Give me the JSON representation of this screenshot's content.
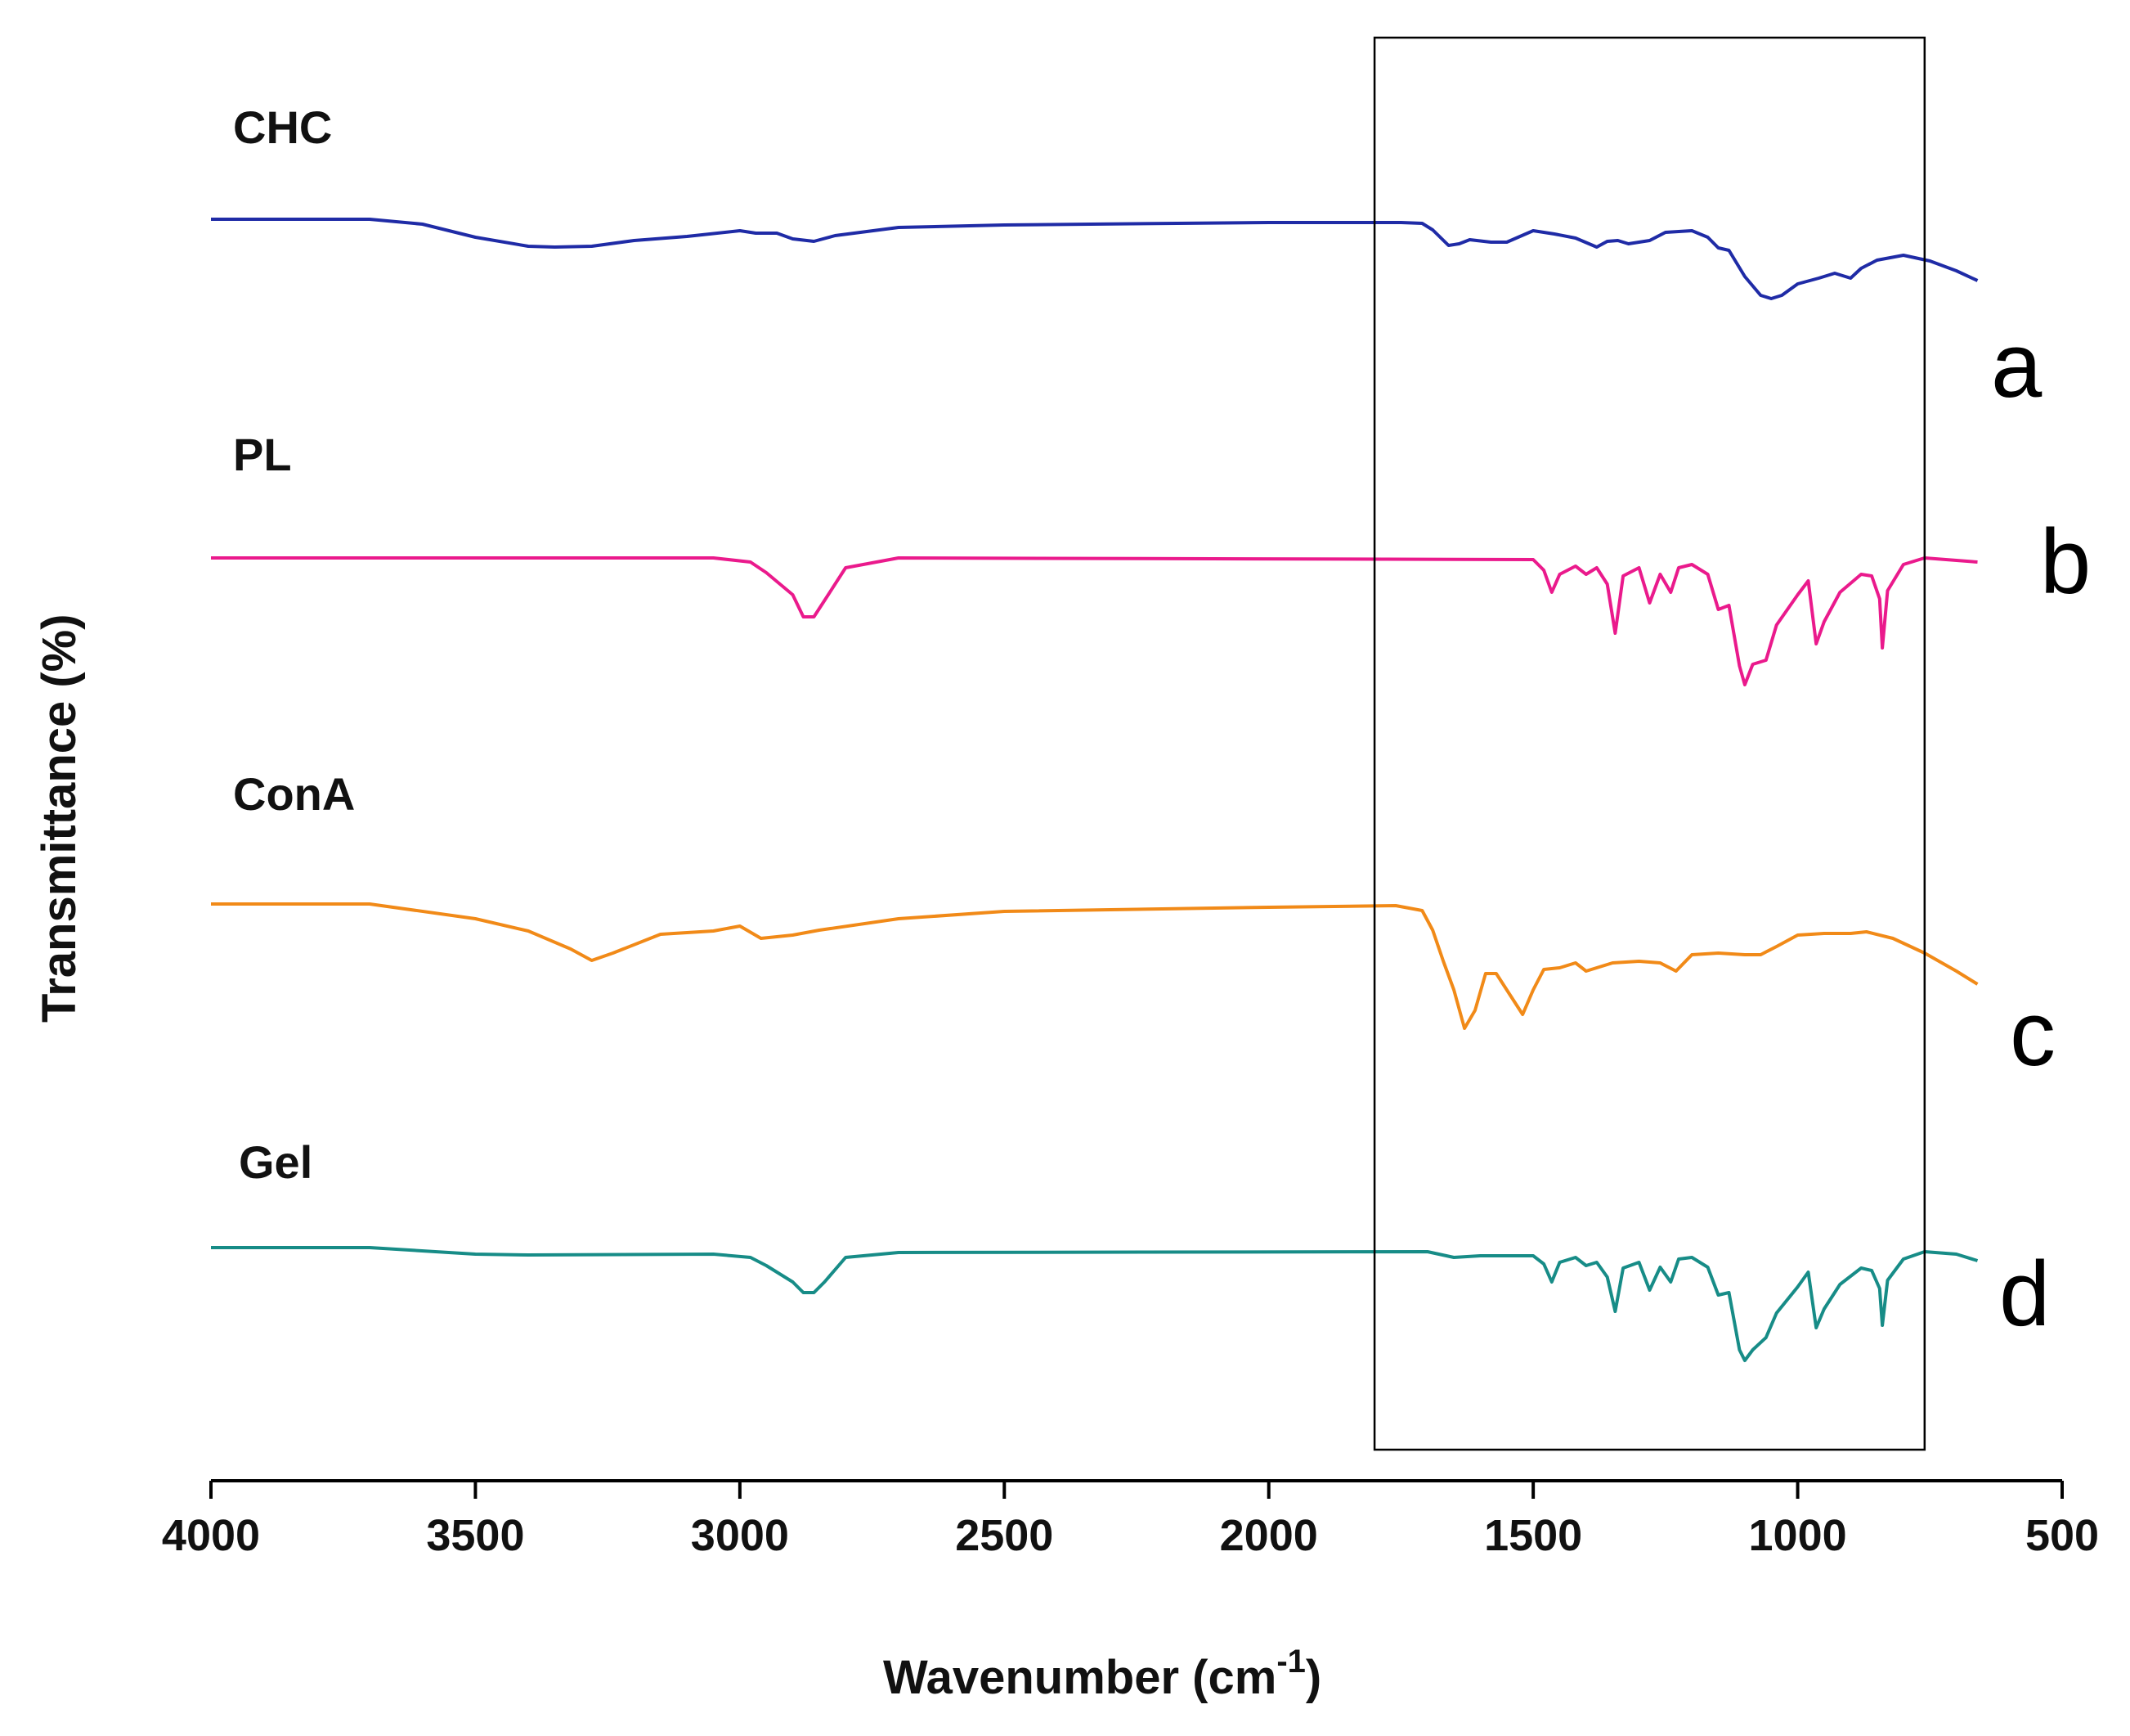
{
  "chart_data": {
    "type": "line",
    "xlabel_main": "Wavenumber (cm",
    "xlabel_sup": "-1",
    "xlabel_close": ")",
    "ylabel": "Transmittance (%)",
    "xlim": [
      4000,
      500
    ],
    "x_ticks": [
      4000,
      3500,
      3000,
      2500,
      2000,
      1500,
      1000,
      500
    ],
    "highlight_box": {
      "x_range": [
        1800,
        760
      ]
    },
    "series": [
      {
        "name": "CHC",
        "letter": "a",
        "color": "#1f2ba6",
        "points": [
          [
            4000,
            0
          ],
          [
            3700,
            0
          ],
          [
            3600,
            -0.06
          ],
          [
            3500,
            -0.22
          ],
          [
            3400,
            -0.33
          ],
          [
            3350,
            -0.34
          ],
          [
            3280,
            -0.33
          ],
          [
            3200,
            -0.26
          ],
          [
            3100,
            -0.21
          ],
          [
            3000,
            -0.14
          ],
          [
            2970,
            -0.17
          ],
          [
            2930,
            -0.17
          ],
          [
            2900,
            -0.24
          ],
          [
            2860,
            -0.27
          ],
          [
            2820,
            -0.2
          ],
          [
            2700,
            -0.1
          ],
          [
            2500,
            -0.07
          ],
          [
            2000,
            -0.04
          ],
          [
            1750,
            -0.04
          ],
          [
            1710,
            -0.05
          ],
          [
            1690,
            -0.13
          ],
          [
            1660,
            -0.32
          ],
          [
            1640,
            -0.3
          ],
          [
            1620,
            -0.25
          ],
          [
            1580,
            -0.28
          ],
          [
            1550,
            -0.28
          ],
          [
            1500,
            -0.14
          ],
          [
            1460,
            -0.18
          ],
          [
            1420,
            -0.23
          ],
          [
            1380,
            -0.34
          ],
          [
            1360,
            -0.27
          ],
          [
            1340,
            -0.26
          ],
          [
            1320,
            -0.3
          ],
          [
            1280,
            -0.26
          ],
          [
            1250,
            -0.16
          ],
          [
            1200,
            -0.14
          ],
          [
            1170,
            -0.22
          ],
          [
            1150,
            -0.35
          ],
          [
            1130,
            -0.38
          ],
          [
            1100,
            -0.7
          ],
          [
            1070,
            -0.93
          ],
          [
            1050,
            -0.97
          ],
          [
            1030,
            -0.93
          ],
          [
            1000,
            -0.79
          ],
          [
            960,
            -0.72
          ],
          [
            930,
            -0.66
          ],
          [
            900,
            -0.72
          ],
          [
            880,
            -0.6
          ],
          [
            850,
            -0.5
          ],
          [
            800,
            -0.44
          ],
          [
            750,
            -0.51
          ],
          [
            700,
            -0.63
          ],
          [
            660,
            -0.75
          ]
        ]
      },
      {
        "name": "PL",
        "letter": "b",
        "color": "#ea1a8c",
        "points": [
          [
            4000,
            0
          ],
          [
            3050,
            0
          ],
          [
            2980,
            -0.05
          ],
          [
            2950,
            -0.18
          ],
          [
            2900,
            -0.45
          ],
          [
            2880,
            -0.72
          ],
          [
            2860,
            -0.72
          ],
          [
            2840,
            -0.52
          ],
          [
            2800,
            -0.12
          ],
          [
            2700,
            0
          ],
          [
            1500,
            -0.02
          ],
          [
            1480,
            -0.15
          ],
          [
            1465,
            -0.42
          ],
          [
            1450,
            -0.2
          ],
          [
            1420,
            -0.1
          ],
          [
            1400,
            -0.2
          ],
          [
            1380,
            -0.12
          ],
          [
            1360,
            -0.32
          ],
          [
            1345,
            -0.92
          ],
          [
            1330,
            -0.22
          ],
          [
            1300,
            -0.12
          ],
          [
            1280,
            -0.55
          ],
          [
            1260,
            -0.2
          ],
          [
            1240,
            -0.42
          ],
          [
            1225,
            -0.12
          ],
          [
            1200,
            -0.08
          ],
          [
            1170,
            -0.2
          ],
          [
            1150,
            -0.63
          ],
          [
            1130,
            -0.58
          ],
          [
            1110,
            -1.32
          ],
          [
            1100,
            -1.55
          ],
          [
            1085,
            -1.3
          ],
          [
            1060,
            -1.25
          ],
          [
            1040,
            -0.82
          ],
          [
            1000,
            -0.45
          ],
          [
            980,
            -0.28
          ],
          [
            965,
            -1.05
          ],
          [
            950,
            -0.78
          ],
          [
            920,
            -0.42
          ],
          [
            880,
            -0.2
          ],
          [
            860,
            -0.22
          ],
          [
            845,
            -0.5
          ],
          [
            840,
            -1.1
          ],
          [
            830,
            -0.4
          ],
          [
            800,
            -0.08
          ],
          [
            760,
            0
          ],
          [
            660,
            -0.05
          ]
        ]
      },
      {
        "name": "ConA",
        "letter": "c",
        "color": "#f18a18",
        "points": [
          [
            4000,
            0
          ],
          [
            3700,
            0
          ],
          [
            3500,
            -0.18
          ],
          [
            3400,
            -0.33
          ],
          [
            3320,
            -0.55
          ],
          [
            3280,
            -0.69
          ],
          [
            3240,
            -0.6
          ],
          [
            3150,
            -0.37
          ],
          [
            3050,
            -0.33
          ],
          [
            3000,
            -0.27
          ],
          [
            2960,
            -0.42
          ],
          [
            2900,
            -0.38
          ],
          [
            2850,
            -0.32
          ],
          [
            2700,
            -0.18
          ],
          [
            2500,
            -0.09
          ],
          [
            2000,
            -0.04
          ],
          [
            1760,
            -0.02
          ],
          [
            1710,
            -0.08
          ],
          [
            1690,
            -0.32
          ],
          [
            1670,
            -0.7
          ],
          [
            1650,
            -1.05
          ],
          [
            1630,
            -1.52
          ],
          [
            1610,
            -1.3
          ],
          [
            1590,
            -0.85
          ],
          [
            1570,
            -0.85
          ],
          [
            1550,
            -1.05
          ],
          [
            1520,
            -1.35
          ],
          [
            1500,
            -1.05
          ],
          [
            1480,
            -0.8
          ],
          [
            1450,
            -0.78
          ],
          [
            1420,
            -0.72
          ],
          [
            1400,
            -0.82
          ],
          [
            1350,
            -0.72
          ],
          [
            1300,
            -0.7
          ],
          [
            1260,
            -0.72
          ],
          [
            1230,
            -0.82
          ],
          [
            1200,
            -0.62
          ],
          [
            1150,
            -0.6
          ],
          [
            1100,
            -0.62
          ],
          [
            1070,
            -0.62
          ],
          [
            1040,
            -0.52
          ],
          [
            1000,
            -0.38
          ],
          [
            950,
            -0.36
          ],
          [
            900,
            -0.36
          ],
          [
            870,
            -0.34
          ],
          [
            820,
            -0.42
          ],
          [
            760,
            -0.6
          ],
          [
            700,
            -0.82
          ],
          [
            660,
            -0.98
          ]
        ]
      },
      {
        "name": "Gel",
        "letter": "d",
        "color": "#178c87",
        "points": [
          [
            4000,
            0
          ],
          [
            3700,
            0
          ],
          [
            3500,
            -0.08
          ],
          [
            3400,
            -0.09
          ],
          [
            3050,
            -0.08
          ],
          [
            2980,
            -0.12
          ],
          [
            2950,
            -0.22
          ],
          [
            2900,
            -0.42
          ],
          [
            2880,
            -0.55
          ],
          [
            2860,
            -0.55
          ],
          [
            2840,
            -0.42
          ],
          [
            2800,
            -0.12
          ],
          [
            2700,
            -0.06
          ],
          [
            1700,
            -0.05
          ],
          [
            1650,
            -0.12
          ],
          [
            1600,
            -0.1
          ],
          [
            1550,
            -0.1
          ],
          [
            1500,
            -0.1
          ],
          [
            1480,
            -0.2
          ],
          [
            1465,
            -0.42
          ],
          [
            1450,
            -0.18
          ],
          [
            1420,
            -0.12
          ],
          [
            1400,
            -0.22
          ],
          [
            1380,
            -0.18
          ],
          [
            1360,
            -0.36
          ],
          [
            1345,
            -0.78
          ],
          [
            1330,
            -0.25
          ],
          [
            1300,
            -0.18
          ],
          [
            1280,
            -0.52
          ],
          [
            1260,
            -0.24
          ],
          [
            1240,
            -0.42
          ],
          [
            1225,
            -0.14
          ],
          [
            1200,
            -0.12
          ],
          [
            1170,
            -0.24
          ],
          [
            1150,
            -0.58
          ],
          [
            1130,
            -0.55
          ],
          [
            1110,
            -1.25
          ],
          [
            1100,
            -1.38
          ],
          [
            1085,
            -1.25
          ],
          [
            1060,
            -1.1
          ],
          [
            1040,
            -0.8
          ],
          [
            1000,
            -0.48
          ],
          [
            980,
            -0.3
          ],
          [
            965,
            -0.98
          ],
          [
            950,
            -0.75
          ],
          [
            920,
            -0.45
          ],
          [
            880,
            -0.25
          ],
          [
            860,
            -0.28
          ],
          [
            845,
            -0.5
          ],
          [
            840,
            -0.95
          ],
          [
            830,
            -0.4
          ],
          [
            800,
            -0.14
          ],
          [
            760,
            -0.05
          ],
          [
            700,
            -0.08
          ],
          [
            660,
            -0.16
          ]
        ]
      }
    ]
  }
}
